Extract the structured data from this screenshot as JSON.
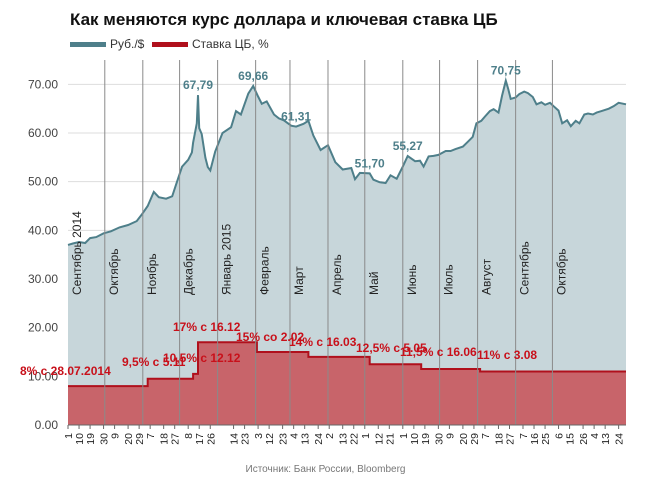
{
  "title": "Как меняются курс доллара и ключевая ставка ЦБ",
  "source": "Источник: Банк России, Bloomberg",
  "colors": {
    "rub_fill": "#c7d6da",
    "rub_line": "#4e7f8a",
    "rate_fill": "#c8646a",
    "rate_line": "#b0101c",
    "grid": "#dddddd",
    "month_line": "#8a8a8a",
    "peak_label": "#4e7f8a",
    "rate_label": "#c8101a"
  },
  "chart_data": {
    "type": "area",
    "title": "Как меняются курс доллара и ключевая ставка ЦБ",
    "legend": [
      "Руб./$",
      "Ставка ЦБ, %"
    ],
    "legend_position": "top-left",
    "grid": true,
    "ylim": [
      0,
      75
    ],
    "yticks": [
      "0.00",
      "10.00",
      "20.00",
      "30.00",
      "40.00",
      "50.00",
      "60.00",
      "70.00"
    ],
    "xlim": [
      "2014-09-01",
      "2015-11-30"
    ],
    "x_ticks": [
      {
        "date": "2014-09-01",
        "label": "1"
      },
      {
        "date": "2014-09-10",
        "label": "10"
      },
      {
        "date": "2014-09-19",
        "label": "19"
      },
      {
        "date": "2014-09-30",
        "label": "30"
      },
      {
        "date": "2014-10-09",
        "label": "9"
      },
      {
        "date": "2014-10-20",
        "label": "20"
      },
      {
        "date": "2014-10-29",
        "label": "29"
      },
      {
        "date": "2014-11-07",
        "label": "7"
      },
      {
        "date": "2014-11-18",
        "label": "18"
      },
      {
        "date": "2014-11-27",
        "label": "27"
      },
      {
        "date": "2014-12-08",
        "label": "8"
      },
      {
        "date": "2014-12-17",
        "label": "17"
      },
      {
        "date": "2014-12-26",
        "label": "26"
      },
      {
        "date": "2015-01-14",
        "label": "14"
      },
      {
        "date": "2015-01-23",
        "label": "23"
      },
      {
        "date": "2015-02-03",
        "label": "3"
      },
      {
        "date": "2015-02-12",
        "label": "12"
      },
      {
        "date": "2015-02-23",
        "label": "23"
      },
      {
        "date": "2015-03-04",
        "label": "4"
      },
      {
        "date": "2015-03-13",
        "label": "13"
      },
      {
        "date": "2015-03-24",
        "label": "24"
      },
      {
        "date": "2015-04-02",
        "label": "2"
      },
      {
        "date": "2015-04-13",
        "label": "13"
      },
      {
        "date": "2015-04-22",
        "label": "22"
      },
      {
        "date": "2015-05-01",
        "label": "1"
      },
      {
        "date": "2015-05-12",
        "label": "12"
      },
      {
        "date": "2015-05-21",
        "label": "21"
      },
      {
        "date": "2015-06-01",
        "label": "1"
      },
      {
        "date": "2015-06-10",
        "label": "10"
      },
      {
        "date": "2015-06-19",
        "label": "19"
      },
      {
        "date": "2015-06-30",
        "label": "30"
      },
      {
        "date": "2015-07-09",
        "label": "9"
      },
      {
        "date": "2015-07-20",
        "label": "20"
      },
      {
        "date": "2015-07-29",
        "label": "29"
      },
      {
        "date": "2015-08-07",
        "label": "7"
      },
      {
        "date": "2015-08-18",
        "label": "18"
      },
      {
        "date": "2015-08-27",
        "label": "27"
      },
      {
        "date": "2015-09-07",
        "label": "7"
      },
      {
        "date": "2015-09-16",
        "label": "16"
      },
      {
        "date": "2015-09-25",
        "label": "25"
      },
      {
        "date": "2015-10-06",
        "label": "6"
      },
      {
        "date": "2015-10-15",
        "label": "15"
      },
      {
        "date": "2015-10-26",
        "label": "26"
      },
      {
        "date": "2015-11-04",
        "label": "4"
      },
      {
        "date": "2015-11-13",
        "label": "13"
      },
      {
        "date": "2015-11-24",
        "label": "24"
      }
    ],
    "months": [
      {
        "date": "2014-09-01",
        "label": "Сентябрь 2014"
      },
      {
        "date": "2014-10-01",
        "label": "Октябрь"
      },
      {
        "date": "2014-11-01",
        "label": "Ноябрь"
      },
      {
        "date": "2014-12-01",
        "label": "Декабрь"
      },
      {
        "date": "2015-01-01",
        "label": "Январь 2015"
      },
      {
        "date": "2015-02-01",
        "label": "Февраль"
      },
      {
        "date": "2015-03-01",
        "label": "Март"
      },
      {
        "date": "2015-04-01",
        "label": "Апрель"
      },
      {
        "date": "2015-05-01",
        "label": "Май"
      },
      {
        "date": "2015-06-01",
        "label": "Июнь"
      },
      {
        "date": "2015-07-01",
        "label": "Июль"
      },
      {
        "date": "2015-08-01",
        "label": "Август"
      },
      {
        "date": "2015-09-01",
        "label": "Сентябрь"
      },
      {
        "date": "2015-10-01",
        "label": "Октябрь"
      }
    ],
    "series": [
      {
        "name": "Руб./$",
        "type": "area",
        "points": [
          [
            "2014-09-01",
            37.0
          ],
          [
            "2014-09-05",
            37.3
          ],
          [
            "2014-09-10",
            37.6
          ],
          [
            "2014-09-15",
            37.4
          ],
          [
            "2014-09-19",
            38.4
          ],
          [
            "2014-09-24",
            38.6
          ],
          [
            "2014-09-30",
            39.4
          ],
          [
            "2014-10-06",
            39.8
          ],
          [
            "2014-10-13",
            40.6
          ],
          [
            "2014-10-20",
            41.1
          ],
          [
            "2014-10-27",
            41.9
          ],
          [
            "2014-10-31",
            43.2
          ],
          [
            "2014-11-05",
            45.0
          ],
          [
            "2014-11-10",
            47.9
          ],
          [
            "2014-11-14",
            46.8
          ],
          [
            "2014-11-20",
            46.5
          ],
          [
            "2014-11-25",
            47.0
          ],
          [
            "2014-11-28",
            49.3
          ],
          [
            "2014-12-03",
            53.1
          ],
          [
            "2014-12-08",
            54.5
          ],
          [
            "2014-12-11",
            56.0
          ],
          [
            "2014-12-12",
            58.0
          ],
          [
            "2014-12-15",
            62.0
          ],
          [
            "2014-12-16",
            67.79
          ],
          [
            "2014-12-17",
            61.0
          ],
          [
            "2014-12-19",
            59.8
          ],
          [
            "2014-12-22",
            54.9
          ],
          [
            "2014-12-24",
            53.0
          ],
          [
            "2014-12-26",
            52.3
          ],
          [
            "2014-12-30",
            56.2
          ],
          [
            "2015-01-05",
            60.0
          ],
          [
            "2015-01-12",
            61.2
          ],
          [
            "2015-01-16",
            64.5
          ],
          [
            "2015-01-20",
            63.8
          ],
          [
            "2015-01-26",
            68.1
          ],
          [
            "2015-01-30",
            69.66
          ],
          [
            "2015-02-03",
            67.5
          ],
          [
            "2015-02-06",
            66.0
          ],
          [
            "2015-02-10",
            66.5
          ],
          [
            "2015-02-16",
            63.8
          ],
          [
            "2015-02-20",
            63.0
          ],
          [
            "2015-02-24",
            62.6
          ],
          [
            "2015-03-02",
            61.5
          ],
          [
            "2015-03-06",
            61.31
          ],
          [
            "2015-03-12",
            61.9
          ],
          [
            "2015-03-16",
            62.5
          ],
          [
            "2015-03-20",
            59.5
          ],
          [
            "2015-03-26",
            56.5
          ],
          [
            "2015-04-01",
            57.5
          ],
          [
            "2015-04-07",
            54.0
          ],
          [
            "2015-04-13",
            52.5
          ],
          [
            "2015-04-20",
            52.8
          ],
          [
            "2015-04-23",
            50.5
          ],
          [
            "2015-04-27",
            51.8
          ],
          [
            "2015-05-05",
            51.7
          ],
          [
            "2015-05-08",
            50.4
          ],
          [
            "2015-05-13",
            49.9
          ],
          [
            "2015-05-18",
            49.7
          ],
          [
            "2015-05-22",
            51.3
          ],
          [
            "2015-05-27",
            50.6
          ],
          [
            "2015-06-01",
            53.1
          ],
          [
            "2015-06-05",
            55.27
          ],
          [
            "2015-06-11",
            54.2
          ],
          [
            "2015-06-15",
            54.3
          ],
          [
            "2015-06-18",
            53.1
          ],
          [
            "2015-06-22",
            55.2
          ],
          [
            "2015-06-26",
            55.3
          ],
          [
            "2015-06-30",
            55.5
          ],
          [
            "2015-07-06",
            56.3
          ],
          [
            "2015-07-10",
            56.3
          ],
          [
            "2015-07-14",
            56.7
          ],
          [
            "2015-07-20",
            57.2
          ],
          [
            "2015-07-24",
            58.2
          ],
          [
            "2015-07-28",
            59.2
          ],
          [
            "2015-07-31",
            62.0
          ],
          [
            "2015-08-04",
            62.5
          ],
          [
            "2015-08-07",
            63.4
          ],
          [
            "2015-08-11",
            64.5
          ],
          [
            "2015-08-14",
            64.9
          ],
          [
            "2015-08-18",
            64.2
          ],
          [
            "2015-08-21",
            67.7
          ],
          [
            "2015-08-24",
            70.75
          ],
          [
            "2015-08-26",
            69.0
          ],
          [
            "2015-08-28",
            67.0
          ],
          [
            "2015-09-01",
            67.3
          ],
          [
            "2015-09-04",
            68.0
          ],
          [
            "2015-09-08",
            68.5
          ],
          [
            "2015-09-11",
            68.2
          ],
          [
            "2015-09-15",
            67.4
          ],
          [
            "2015-09-18",
            65.9
          ],
          [
            "2015-09-22",
            66.3
          ],
          [
            "2015-09-25",
            65.8
          ],
          [
            "2015-09-29",
            66.2
          ],
          [
            "2015-10-02",
            65.5
          ],
          [
            "2015-10-06",
            64.6
          ],
          [
            "2015-10-09",
            62.0
          ],
          [
            "2015-10-13",
            62.6
          ],
          [
            "2015-10-16",
            61.4
          ],
          [
            "2015-10-20",
            62.5
          ],
          [
            "2015-10-23",
            62.0
          ],
          [
            "2015-10-27",
            63.8
          ],
          [
            "2015-10-30",
            64.0
          ],
          [
            "2015-11-03",
            63.8
          ],
          [
            "2015-11-06",
            64.2
          ],
          [
            "2015-11-10",
            64.5
          ],
          [
            "2015-11-16",
            65.0
          ],
          [
            "2015-11-20",
            65.5
          ],
          [
            "2015-11-24",
            66.2
          ],
          [
            "2015-11-30",
            65.9
          ]
        ]
      },
      {
        "name": "Ставка ЦБ, %",
        "type": "step",
        "points": [
          [
            "2014-09-01",
            8.0
          ],
          [
            "2014-11-05",
            9.5
          ],
          [
            "2014-12-12",
            10.5
          ],
          [
            "2014-12-16",
            17.0
          ],
          [
            "2015-02-02",
            15.0
          ],
          [
            "2015-03-16",
            14.0
          ],
          [
            "2015-05-05",
            12.5
          ],
          [
            "2015-06-16",
            11.5
          ],
          [
            "2015-08-03",
            11.0
          ],
          [
            "2015-11-30",
            11.0
          ]
        ]
      }
    ],
    "peak_labels": [
      {
        "date": "2014-12-16",
        "value": 67.79,
        "label": "67,79"
      },
      {
        "date": "2015-01-30",
        "value": 69.66,
        "label": "69,66"
      },
      {
        "date": "2015-03-06",
        "value": 61.31,
        "label": "61,31"
      },
      {
        "date": "2015-05-05",
        "value": 51.7,
        "label": "51,70"
      },
      {
        "date": "2015-06-05",
        "value": 55.27,
        "label": "55,27"
      },
      {
        "date": "2015-08-24",
        "value": 70.75,
        "label": "70,75"
      }
    ],
    "rate_labels": [
      {
        "label": "8% с 28.07.2014"
      },
      {
        "label": "9,5% с 5.11"
      },
      {
        "label": "10,5% с 12.12"
      },
      {
        "label": "17% с 16.12"
      },
      {
        "label": "15% со 2.02"
      },
      {
        "label": "14% с 16.03"
      },
      {
        "label": "12,5% с 5.05"
      },
      {
        "label": "11,5% с 16.06"
      },
      {
        "label": "11% с 3.08"
      }
    ]
  }
}
